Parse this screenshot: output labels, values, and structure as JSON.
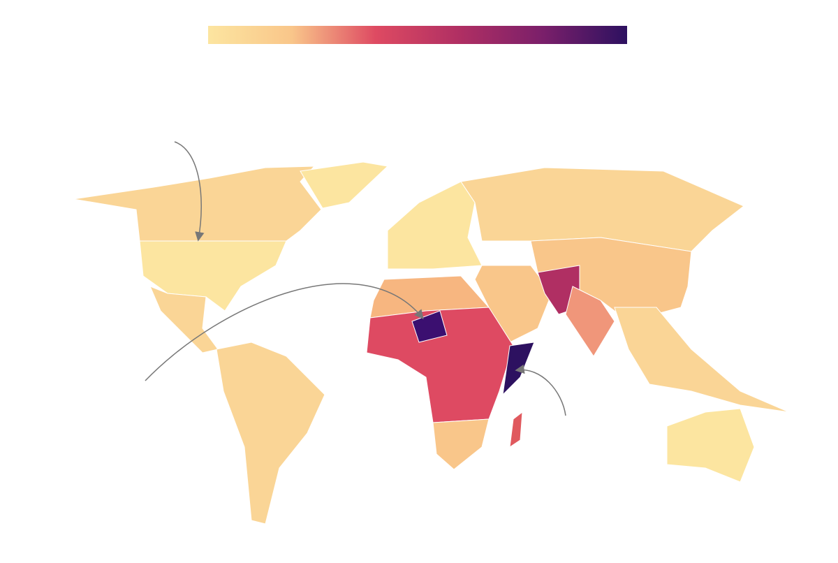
{
  "colorbar": {
    "colors": [
      "#fce5a0",
      "#f9c68a",
      "#de4a62",
      "#b02f63",
      "#7a1f6a",
      "#2d1160"
    ]
  }
}
